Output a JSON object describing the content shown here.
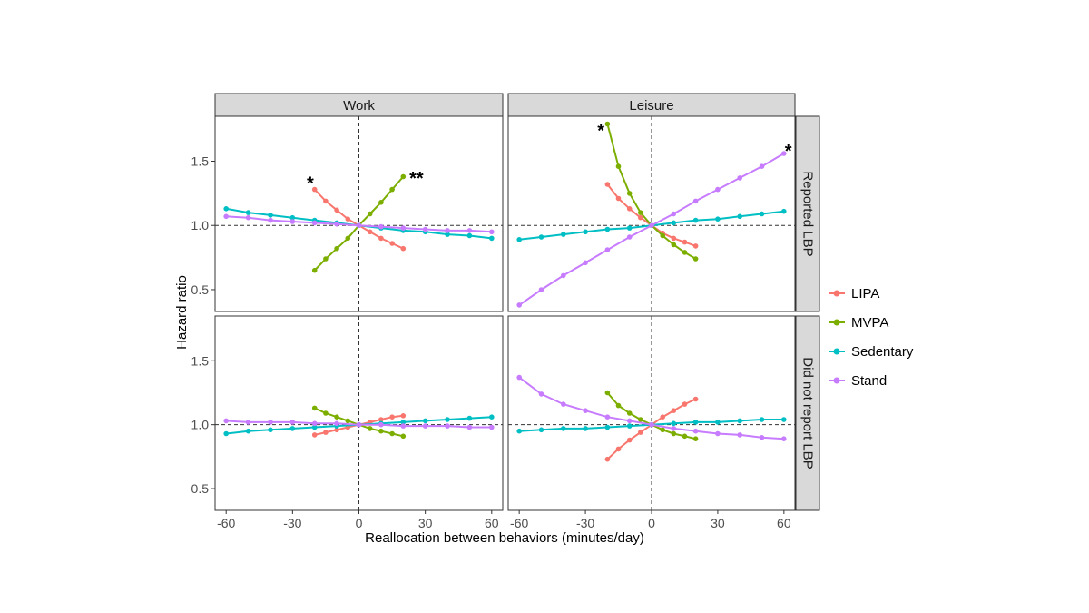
{
  "chart_data": {
    "type": "line",
    "xlabel": "Reallocation between behaviors (minutes/day)",
    "ylabel": "Hazard ratio",
    "xlim": [
      -65,
      65
    ],
    "ylim": [
      0.33,
      1.85
    ],
    "x_ticks": [
      -60,
      -30,
      0,
      30,
      60
    ],
    "x_tick_labels": [
      "-60",
      "-30",
      "0",
      "30",
      "60"
    ],
    "y_ticks": [
      0.5,
      1.0,
      1.5
    ],
    "y_tick_labels": [
      "0.5",
      "1.0",
      "1.5"
    ],
    "reference_lines": {
      "x": 0,
      "y": 1.0,
      "style": "dashed"
    },
    "legend": {
      "position": "right",
      "entries": [
        "LIPA",
        "MVPA",
        "Sedentary",
        "Stand"
      ]
    },
    "series_colors": {
      "LIPA": "#F8766D",
      "MVPA": "#7CAE00",
      "Sedentary": "#00BFC4",
      "Stand": "#C77CFF"
    },
    "col_labels": [
      "Work",
      "Leisure"
    ],
    "row_labels": [
      "Reported LBP",
      "Did not report LBP"
    ],
    "panels": [
      {
        "col": 0,
        "row": 0,
        "annotations": [
          {
            "text": "*",
            "x": -22,
            "y": 1.33
          },
          {
            "text": "**",
            "x": 26,
            "y": 1.37
          }
        ],
        "series": [
          {
            "name": "LIPA",
            "x": [
              -20,
              -15,
              -10,
              -5,
              0,
              5,
              10,
              15,
              20
            ],
            "y": [
              1.28,
              1.19,
              1.12,
              1.05,
              1.0,
              0.95,
              0.9,
              0.86,
              0.82
            ]
          },
          {
            "name": "MVPA",
            "x": [
              -20,
              -15,
              -10,
              -5,
              0,
              5,
              10,
              15,
              20
            ],
            "y": [
              0.65,
              0.74,
              0.82,
              0.9,
              1.0,
              1.09,
              1.18,
              1.28,
              1.38
            ]
          },
          {
            "name": "Sedentary",
            "x": [
              -60,
              -50,
              -40,
              -30,
              -20,
              -10,
              0,
              10,
              20,
              30,
              40,
              50,
              60
            ],
            "y": [
              1.13,
              1.1,
              1.08,
              1.06,
              1.04,
              1.02,
              1.0,
              0.98,
              0.96,
              0.95,
              0.93,
              0.92,
              0.9
            ]
          },
          {
            "name": "Stand",
            "x": [
              -60,
              -50,
              -40,
              -30,
              -20,
              -10,
              0,
              10,
              20,
              30,
              40,
              50,
              60
            ],
            "y": [
              1.07,
              1.06,
              1.04,
              1.03,
              1.02,
              1.01,
              1.0,
              0.99,
              0.98,
              0.97,
              0.96,
              0.96,
              0.95
            ]
          }
        ]
      },
      {
        "col": 1,
        "row": 0,
        "annotations": [
          {
            "text": "*",
            "x": -23,
            "y": 1.74
          },
          {
            "text": "*",
            "x": 62,
            "y": 1.58
          }
        ],
        "series": [
          {
            "name": "LIPA",
            "x": [
              -20,
              -15,
              -10,
              -5,
              0,
              5,
              10,
              15,
              20
            ],
            "y": [
              1.32,
              1.21,
              1.13,
              1.06,
              1.0,
              0.94,
              0.9,
              0.87,
              0.84
            ]
          },
          {
            "name": "MVPA",
            "x": [
              -20,
              -15,
              -10,
              -5,
              0,
              5,
              10,
              15,
              20
            ],
            "y": [
              1.79,
              1.46,
              1.25,
              1.1,
              1.0,
              0.92,
              0.85,
              0.79,
              0.74
            ]
          },
          {
            "name": "Sedentary",
            "x": [
              -60,
              -50,
              -40,
              -30,
              -20,
              -10,
              0,
              10,
              20,
              30,
              40,
              50,
              60
            ],
            "y": [
              0.89,
              0.91,
              0.93,
              0.95,
              0.97,
              0.98,
              1.0,
              1.02,
              1.04,
              1.05,
              1.07,
              1.09,
              1.11
            ]
          },
          {
            "name": "Stand",
            "x": [
              -60,
              -50,
              -40,
              -30,
              -20,
              -10,
              0,
              10,
              20,
              30,
              40,
              50,
              60
            ],
            "y": [
              0.38,
              0.5,
              0.61,
              0.71,
              0.81,
              0.91,
              1.0,
              1.09,
              1.19,
              1.28,
              1.37,
              1.46,
              1.56
            ]
          }
        ]
      },
      {
        "col": 0,
        "row": 1,
        "annotations": [],
        "series": [
          {
            "name": "LIPA",
            "x": [
              -20,
              -15,
              -10,
              -5,
              0,
              5,
              10,
              15,
              20
            ],
            "y": [
              0.92,
              0.94,
              0.96,
              0.98,
              1.0,
              1.02,
              1.04,
              1.06,
              1.07
            ]
          },
          {
            "name": "MVPA",
            "x": [
              -20,
              -15,
              -10,
              -5,
              0,
              5,
              10,
              15,
              20
            ],
            "y": [
              1.13,
              1.09,
              1.06,
              1.03,
              1.0,
              0.97,
              0.95,
              0.93,
              0.91
            ]
          },
          {
            "name": "Sedentary",
            "x": [
              -60,
              -50,
              -40,
              -30,
              -20,
              -10,
              0,
              10,
              20,
              30,
              40,
              50,
              60
            ],
            "y": [
              0.93,
              0.95,
              0.96,
              0.97,
              0.98,
              0.99,
              1.0,
              1.01,
              1.02,
              1.03,
              1.04,
              1.05,
              1.06
            ]
          },
          {
            "name": "Stand",
            "x": [
              -60,
              -50,
              -40,
              -30,
              -20,
              -10,
              0,
              10,
              20,
              30,
              40,
              50,
              60
            ],
            "y": [
              1.03,
              1.02,
              1.02,
              1.02,
              1.01,
              1.01,
              1.0,
              1.0,
              0.99,
              0.99,
              0.99,
              0.98,
              0.98
            ]
          }
        ]
      },
      {
        "col": 1,
        "row": 1,
        "annotations": [],
        "series": [
          {
            "name": "LIPA",
            "x": [
              -20,
              -15,
              -10,
              -5,
              0,
              5,
              10,
              15,
              20
            ],
            "y": [
              0.73,
              0.81,
              0.88,
              0.94,
              1.0,
              1.06,
              1.11,
              1.16,
              1.2
            ]
          },
          {
            "name": "MVPA",
            "x": [
              -20,
              -15,
              -10,
              -5,
              0,
              5,
              10,
              15,
              20
            ],
            "y": [
              1.25,
              1.15,
              1.09,
              1.04,
              1.0,
              0.96,
              0.93,
              0.91,
              0.89
            ]
          },
          {
            "name": "Sedentary",
            "x": [
              -60,
              -50,
              -40,
              -30,
              -20,
              -10,
              0,
              10,
              20,
              30,
              40,
              50,
              60
            ],
            "y": [
              0.95,
              0.96,
              0.97,
              0.97,
              0.98,
              0.99,
              1.0,
              1.01,
              1.02,
              1.02,
              1.03,
              1.04,
              1.04
            ]
          },
          {
            "name": "Stand",
            "x": [
              -60,
              -50,
              -40,
              -30,
              -20,
              -10,
              0,
              10,
              20,
              30,
              40,
              50,
              60
            ],
            "y": [
              1.37,
              1.24,
              1.16,
              1.11,
              1.06,
              1.03,
              1.0,
              0.97,
              0.95,
              0.93,
              0.92,
              0.9,
              0.89
            ]
          }
        ]
      }
    ]
  }
}
